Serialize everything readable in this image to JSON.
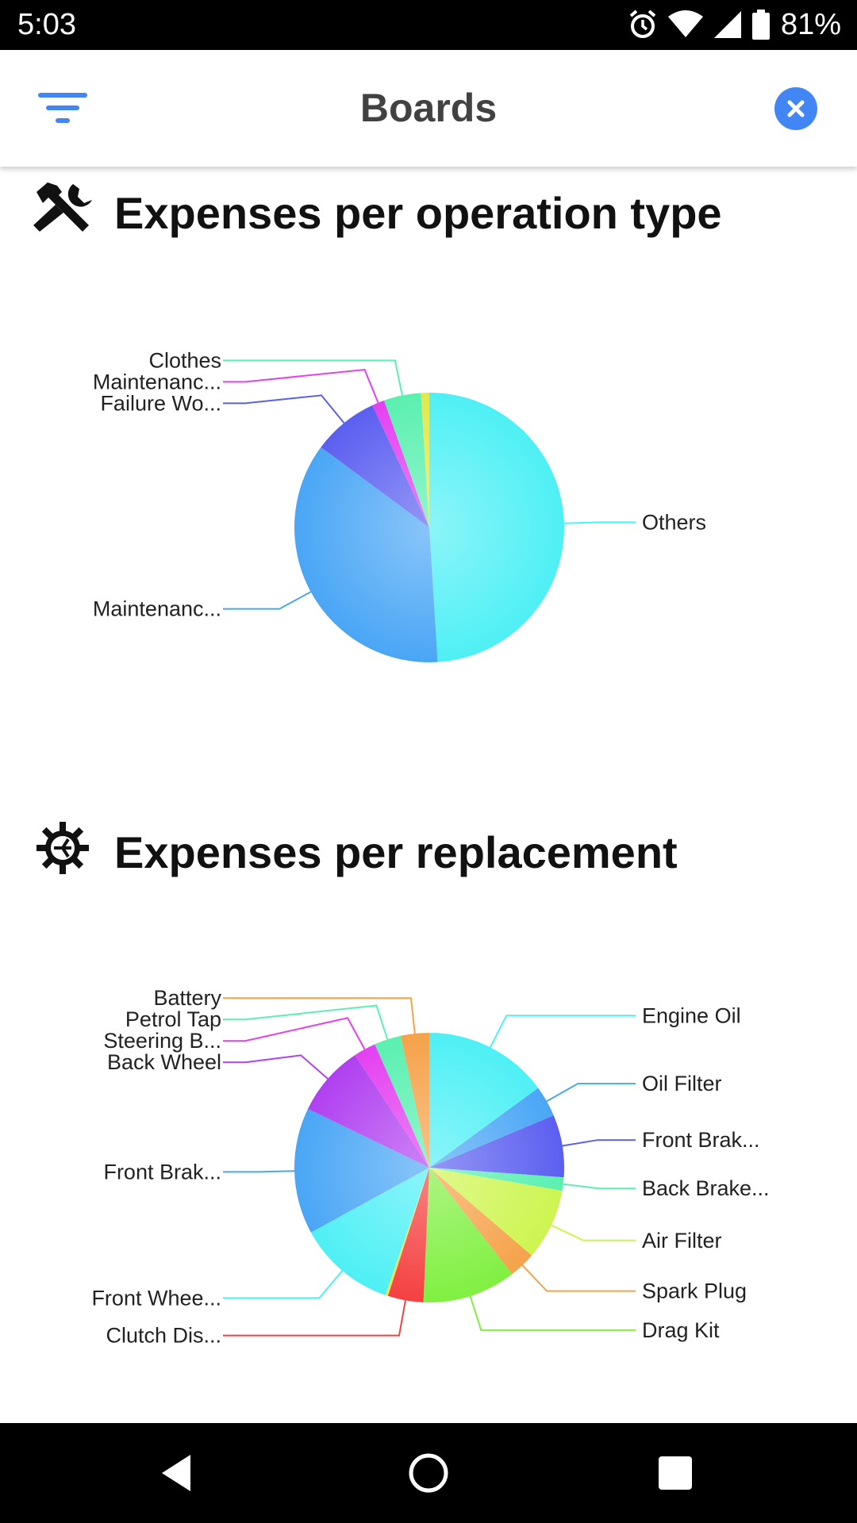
{
  "status_bar": {
    "time": "5:03",
    "battery_percent": "81%",
    "icons": [
      "alarm-icon",
      "wifi-icon",
      "signal-icon",
      "battery-icon"
    ]
  },
  "app_bar": {
    "title": "Boards",
    "filter_icon": "filter-icon",
    "close_icon": "close-icon",
    "accent_color": "#4286f5"
  },
  "sections": [
    {
      "title": "Expenses per operation type",
      "icon": "tools-icon",
      "chart_data": {
        "type": "pie",
        "series": [
          {
            "labels": [
              "Others",
              "Maintenanc...",
              "Failure Wo...",
              "Maintenanc...",
              "Clothes",
              ""
            ],
            "values": [
              49.5,
              36.5,
              8.0,
              1.5,
              4.5,
              1.0
            ],
            "colors": [
              "#4ef0f5",
              "#4aa6f5",
              "#5b5ff0",
              "#e440f0",
              "#5af0b0",
              "#e2e84a"
            ]
          }
        ]
      }
    },
    {
      "title": "Expenses per replacement",
      "icon": "gear-icon",
      "chart_data": {
        "type": "pie",
        "series": [
          {
            "labels": [
              "Engine Oil",
              "Oil Filter",
              "Front Brak...",
              "Back Brake...",
              "Air Filter",
              "Spark Plug",
              "Drag Kit",
              "Clutch Dis...",
              "",
              "Front Whee...",
              "Front Brak...",
              "Back Wheel",
              "Steering B...",
              "Petrol Tap",
              "Battery"
            ],
            "values": [
              14.0,
              3.5,
              7.0,
              1.5,
              8.0,
              3.0,
              10.5,
              4.0,
              0.3,
              11.0,
              14.2,
              8.0,
              2.5,
              3.0,
              3.2
            ],
            "colors": [
              "#4ef0f5",
              "#4aa6f5",
              "#5b5ff0",
              "#5af0b0",
              "#cdf550",
              "#f5a24a",
              "#80f040",
              "#f54040",
              "#e2e84a",
              "#4ef0f5",
              "#4aa6f5",
              "#b040f0",
              "#e440f0",
              "#5af0b0",
              "#f5a24a"
            ]
          }
        ]
      }
    }
  ],
  "nav_bar": {
    "buttons": [
      "back-icon",
      "home-icon",
      "recents-icon"
    ]
  }
}
